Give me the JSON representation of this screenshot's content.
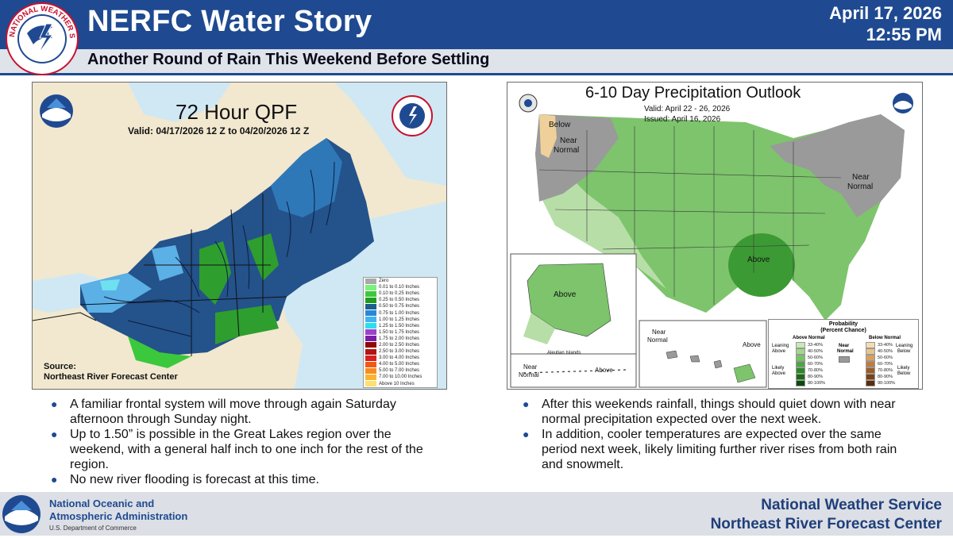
{
  "header": {
    "title": "NERFC Water Story",
    "subtitle": "Another Round of Rain This Weekend Before Settling",
    "date": "April 17, 2026",
    "time": "12:55 PM",
    "logo_text": "NATIONAL WEATHER SERVICE",
    "logo_icon": "nws-logo-icon"
  },
  "left_panel": {
    "title": "72 Hour QPF",
    "valid": "Valid: 04/17/2026 12 Z to 04/20/2026 12 Z",
    "source_label": "Source:",
    "source_name": "Northeast River Forecast Center",
    "logos": [
      "noaa-logo-icon",
      "nws-logo-icon"
    ],
    "legend": [
      {
        "label": "Zero",
        "color": "#a9a9a9"
      },
      {
        "label": "0.01 to 0.10 Inches",
        "color": "#7cf07c"
      },
      {
        "label": "0.10 to 0.25 Inches",
        "color": "#3cc83c"
      },
      {
        "label": "0.25 to 0.50 Inches",
        "color": "#1e9e1e"
      },
      {
        "label": "0.50 to 0.75 Inches",
        "color": "#1c5e8c"
      },
      {
        "label": "0.75 to 1.00 Inches",
        "color": "#2a86d6"
      },
      {
        "label": "1.00 to 1.25 Inches",
        "color": "#40b4f0"
      },
      {
        "label": "1.25 to 1.50 Inches",
        "color": "#28e0f0"
      },
      {
        "label": "1.50 to 1.75 Inches",
        "color": "#a040d0"
      },
      {
        "label": "1.75 to 2.00 Inches",
        "color": "#7a1ea6"
      },
      {
        "label": "2.00 to 2.50 Inches",
        "color": "#8c0a0a"
      },
      {
        "label": "2.50 to 3.00 Inches",
        "color": "#b01414"
      },
      {
        "label": "3.00 to 4.00 Inches",
        "color": "#d82020"
      },
      {
        "label": "4.00 to 5.00 Inches",
        "color": "#f05a14"
      },
      {
        "label": "5.00 to 7.00 Inches",
        "color": "#f88c1e"
      },
      {
        "label": "7.00 to 10.00 Inches",
        "color": "#fbb430"
      },
      {
        "label": "Above 10 Inches",
        "color": "#fde070"
      }
    ]
  },
  "right_panel": {
    "title": "6-10 Day Precipitation Outlook",
    "valid": "Valid:  April 22 - 26, 2026",
    "issued": "Issued:  April 16, 2026",
    "logos": [
      "cpc-logo-icon",
      "noaa-logo-icon"
    ],
    "labels": {
      "below": "Below",
      "near_normal_w_1": "Near",
      "near_normal_w_2": "Normal",
      "near_normal_ne_1": "Near",
      "near_normal_ne_2": "Normal",
      "above_se": "Above",
      "above_ak": "Above",
      "aleutian": "Aleutian Islands",
      "above_ak2": "Above",
      "near_normal_ak_1": "Near",
      "near_normal_ak_2": "Normal",
      "near_normal_hi_1": "Near",
      "near_normal_hi_2": "Normal",
      "above_hi": "Above"
    },
    "probability_legend": {
      "title_1": "Probability",
      "title_2": "(Percent Chance)",
      "above_header": "Above Normal",
      "below_header": "Below Normal",
      "near_label_1": "Near",
      "near_label_2": "Normal",
      "leaning_above_1": "Leaning",
      "leaning_above_2": "Above",
      "likely_above_1": "Likely",
      "likely_above_2": "Above",
      "leaning_below_1": "Leaning",
      "leaning_below_2": "Below",
      "likely_below_1": "Likely",
      "likely_below_2": "Below",
      "above": [
        {
          "label": "33-40%",
          "color": "#c8e8b8"
        },
        {
          "label": "40-50%",
          "color": "#a0d88c"
        },
        {
          "label": "50-60%",
          "color": "#78c464"
        },
        {
          "label": "60-70%",
          "color": "#4aa83c"
        },
        {
          "label": "70-80%",
          "color": "#2a8a24"
        },
        {
          "label": "80-90%",
          "color": "#1a6a16"
        },
        {
          "label": "90-100%",
          "color": "#0c4a0c"
        }
      ],
      "below": [
        {
          "label": "33-40%",
          "color": "#f3dcb0"
        },
        {
          "label": "40-50%",
          "color": "#e8c48c"
        },
        {
          "label": "50-60%",
          "color": "#d8a060"
        },
        {
          "label": "60-70%",
          "color": "#c07c3c"
        },
        {
          "label": "70-80%",
          "color": "#9c5c26"
        },
        {
          "label": "80-90%",
          "color": "#7a4216"
        },
        {
          "label": "90-100%",
          "color": "#5a2c0a"
        }
      ]
    }
  },
  "bullets_left": [
    "A familiar frontal system will move through again Saturday afternoon through Sunday night.",
    "Up to 1.50” is possible in the Great Lakes region over the weekend, with a general half inch to one inch for the rest of the region.",
    "No new river flooding is forecast at this time."
  ],
  "bullets_right": [
    "After this weekends rainfall, things should quiet down with near normal precipitation expected over the next week.",
    "In addition, cooler temperatures are expected over the same period next week, likely limiting further river rises from both rain and snowmelt."
  ],
  "bullet_glyph": "●",
  "footer": {
    "org_line1": "National Oceanic and",
    "org_line2": "Atmospheric Administration",
    "dept": "U.S. Department of Commerce",
    "nws": "National Weather Service",
    "nerfc": "Northeast River Forecast Center",
    "logo": "noaa-logo-icon"
  },
  "colors": {
    "brand_blue": "#1f4a91",
    "header_band_light": "#dfe3ea"
  }
}
